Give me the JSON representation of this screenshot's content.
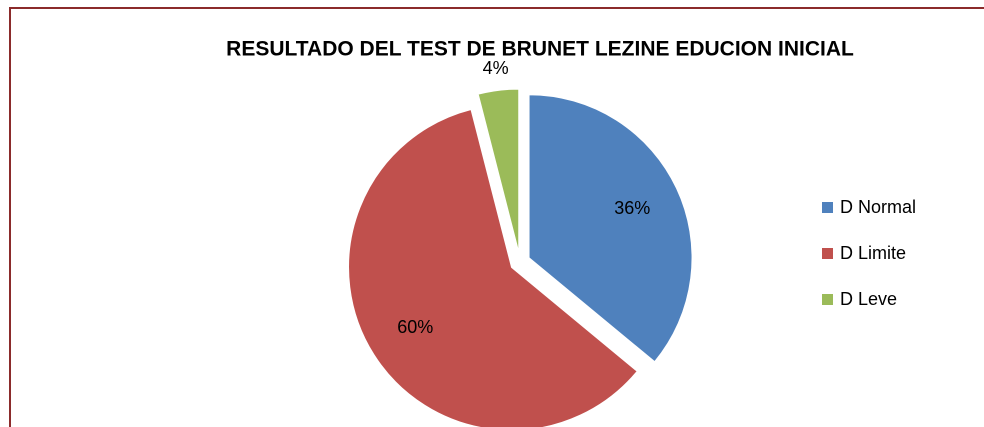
{
  "chart_data": {
    "type": "pie",
    "title": "RESULTADO DEL TEST DE BRUNET LEZINE  EDUCION INICIAL",
    "categories": [
      "D Normal",
      "D Limite",
      "D Leve"
    ],
    "values": [
      36,
      60,
      4
    ],
    "value_labels": [
      "36%",
      "60%",
      "4%"
    ],
    "colors": [
      "#4f81bd",
      "#c0504d",
      "#9bbb59"
    ],
    "legend": "right"
  }
}
